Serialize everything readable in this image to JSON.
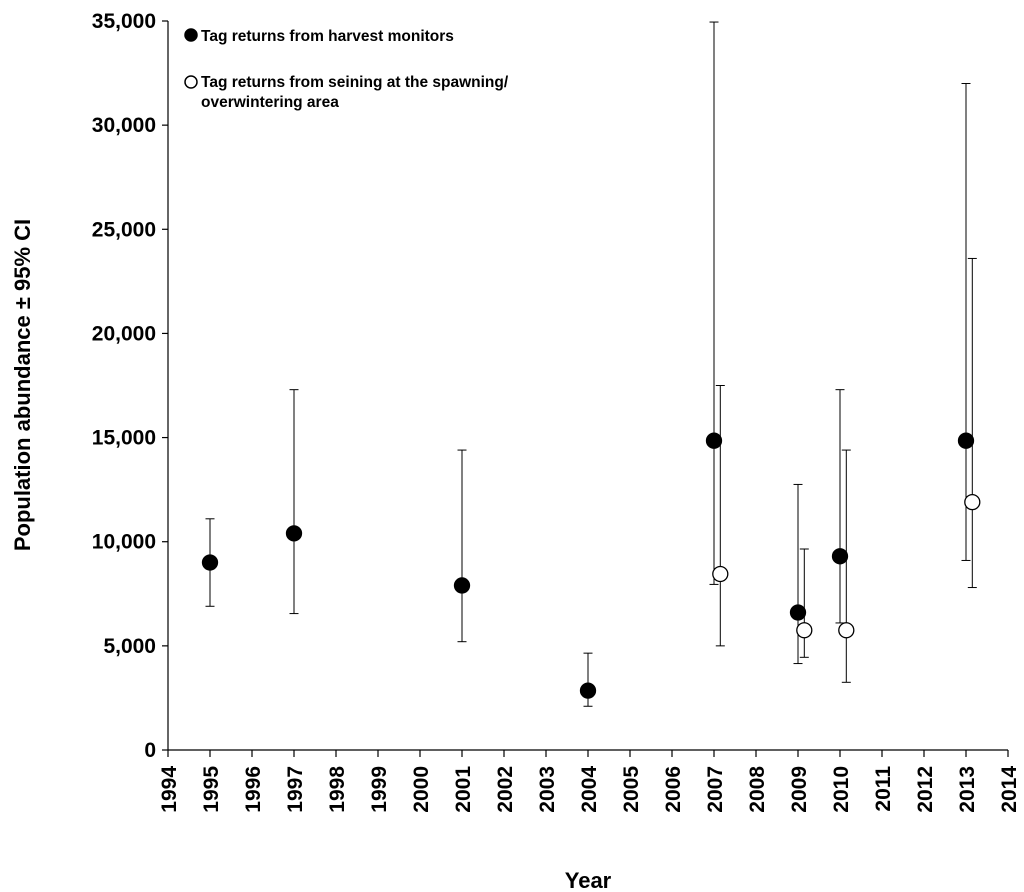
{
  "chart_data": {
    "type": "scatter",
    "title": "",
    "xlabel": "Year",
    "ylabel": "Population abundance ± 95% CI",
    "xlim": [
      1994,
      2014
    ],
    "ylim": [
      0,
      35000
    ],
    "x_ticks": [
      "1994",
      "1995",
      "1996",
      "1997",
      "1998",
      "1999",
      "2000",
      "2001",
      "2002",
      "2003",
      "2004",
      "2005",
      "2006",
      "2007",
      "2008",
      "2009",
      "2010",
      "2011",
      "2012",
      "2013",
      "2014"
    ],
    "y_ticks": [
      "0",
      "5,000",
      "10,000",
      "15,000",
      "20,000",
      "25,000",
      "30,000",
      "35,000"
    ],
    "y_tick_values": [
      0,
      5000,
      10000,
      15000,
      20000,
      25000,
      30000,
      35000
    ],
    "grid": false,
    "legend_position": "top-left",
    "series": [
      {
        "name": "Tag returns from harvest monitors",
        "marker": "filled-circle",
        "color": "#000000",
        "points": [
          {
            "x": 1995,
            "y": 9000,
            "lo": 6900,
            "hi": 11100
          },
          {
            "x": 1997,
            "y": 10400,
            "lo": 6550,
            "hi": 17300
          },
          {
            "x": 2001,
            "y": 7900,
            "lo": 5200,
            "hi": 14400
          },
          {
            "x": 2004,
            "y": 2850,
            "lo": 2100,
            "hi": 4650
          },
          {
            "x": 2007,
            "y": 14850,
            "lo": 7950,
            "hi": 34950
          },
          {
            "x": 2009,
            "y": 6600,
            "lo": 4150,
            "hi": 12750
          },
          {
            "x": 2010,
            "y": 9300,
            "lo": 6100,
            "hi": 17300
          },
          {
            "x": 2013,
            "y": 14850,
            "lo": 9100,
            "hi": 32000
          }
        ]
      },
      {
        "name": "Tag returns from seining at the spawning/ overwintering area",
        "legend_lines": [
          "Tag returns from seining at the spawning/",
          "overwintering area"
        ],
        "marker": "open-circle",
        "color": "#000000",
        "points": [
          {
            "x": 2007.15,
            "y": 8450,
            "lo": 5000,
            "hi": 17500
          },
          {
            "x": 2009.15,
            "y": 5750,
            "lo": 4450,
            "hi": 9650
          },
          {
            "x": 2010.15,
            "y": 5750,
            "lo": 3250,
            "hi": 14400
          },
          {
            "x": 2013.15,
            "y": 11900,
            "lo": 7800,
            "hi": 23600
          }
        ]
      }
    ]
  }
}
